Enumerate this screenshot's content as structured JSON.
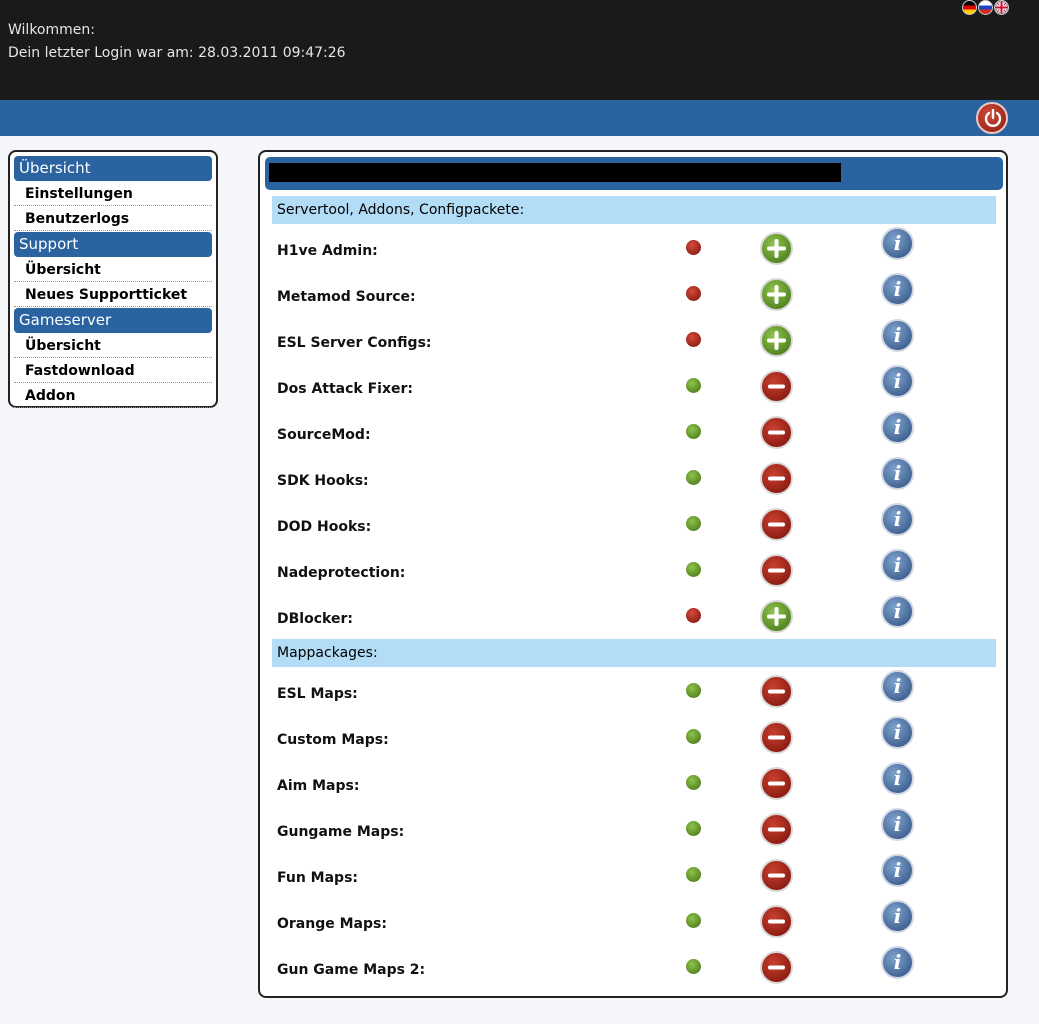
{
  "header": {
    "welcome": "Wilkommen:",
    "last_login": "Dein letzter Login war am: 28.03.2011 09:47:26",
    "flags": [
      "german-flag-icon",
      "russian-flag-icon",
      "uk-flag-icon"
    ],
    "logout_icon": "power-icon"
  },
  "colors": {
    "topbar": "#1a1a1a",
    "accent": "#2a63a0",
    "section_bg": "#b3ddf7",
    "active_green": "#5a8f23",
    "inactive_red": "#9a1e12",
    "info_blue": "#4a6fa5"
  },
  "sidebar": {
    "groups": [
      {
        "title": "Übersicht",
        "items": [
          "Einstellungen",
          "Benutzerlogs"
        ]
      },
      {
        "title": "Support",
        "items": [
          "Übersicht",
          "Neues Supportticket"
        ]
      },
      {
        "title": "Gameserver",
        "items": [
          "Übersicht",
          "Fastdownload",
          "Addon"
        ]
      }
    ]
  },
  "main": {
    "sections": [
      {
        "title": "Servertool, Addons, Configpackete:",
        "items": [
          {
            "label": "H1ve Admin:",
            "status": "inactive",
            "action": "add"
          },
          {
            "label": "Metamod Source:",
            "status": "inactive",
            "action": "add"
          },
          {
            "label": "ESL Server Configs:",
            "status": "inactive",
            "action": "add"
          },
          {
            "label": "Dos Attack Fixer:",
            "status": "active",
            "action": "remove"
          },
          {
            "label": "SourceMod:",
            "status": "active",
            "action": "remove"
          },
          {
            "label": "SDK Hooks:",
            "status": "active",
            "action": "remove"
          },
          {
            "label": "DOD Hooks:",
            "status": "active",
            "action": "remove"
          },
          {
            "label": "Nadeprotection:",
            "status": "active",
            "action": "remove"
          },
          {
            "label": "DBlocker:",
            "status": "inactive",
            "action": "add"
          }
        ]
      },
      {
        "title": "Mappackages:",
        "items": [
          {
            "label": "ESL Maps:",
            "status": "active",
            "action": "remove"
          },
          {
            "label": "Custom Maps:",
            "status": "active",
            "action": "remove"
          },
          {
            "label": "Aim Maps:",
            "status": "active",
            "action": "remove"
          },
          {
            "label": "Gungame Maps:",
            "status": "active",
            "action": "remove"
          },
          {
            "label": "Fun Maps:",
            "status": "active",
            "action": "remove"
          },
          {
            "label": "Orange Maps:",
            "status": "active",
            "action": "remove"
          },
          {
            "label": "Gun Game Maps 2:",
            "status": "active",
            "action": "remove"
          }
        ]
      }
    ],
    "info_glyph": "i"
  }
}
